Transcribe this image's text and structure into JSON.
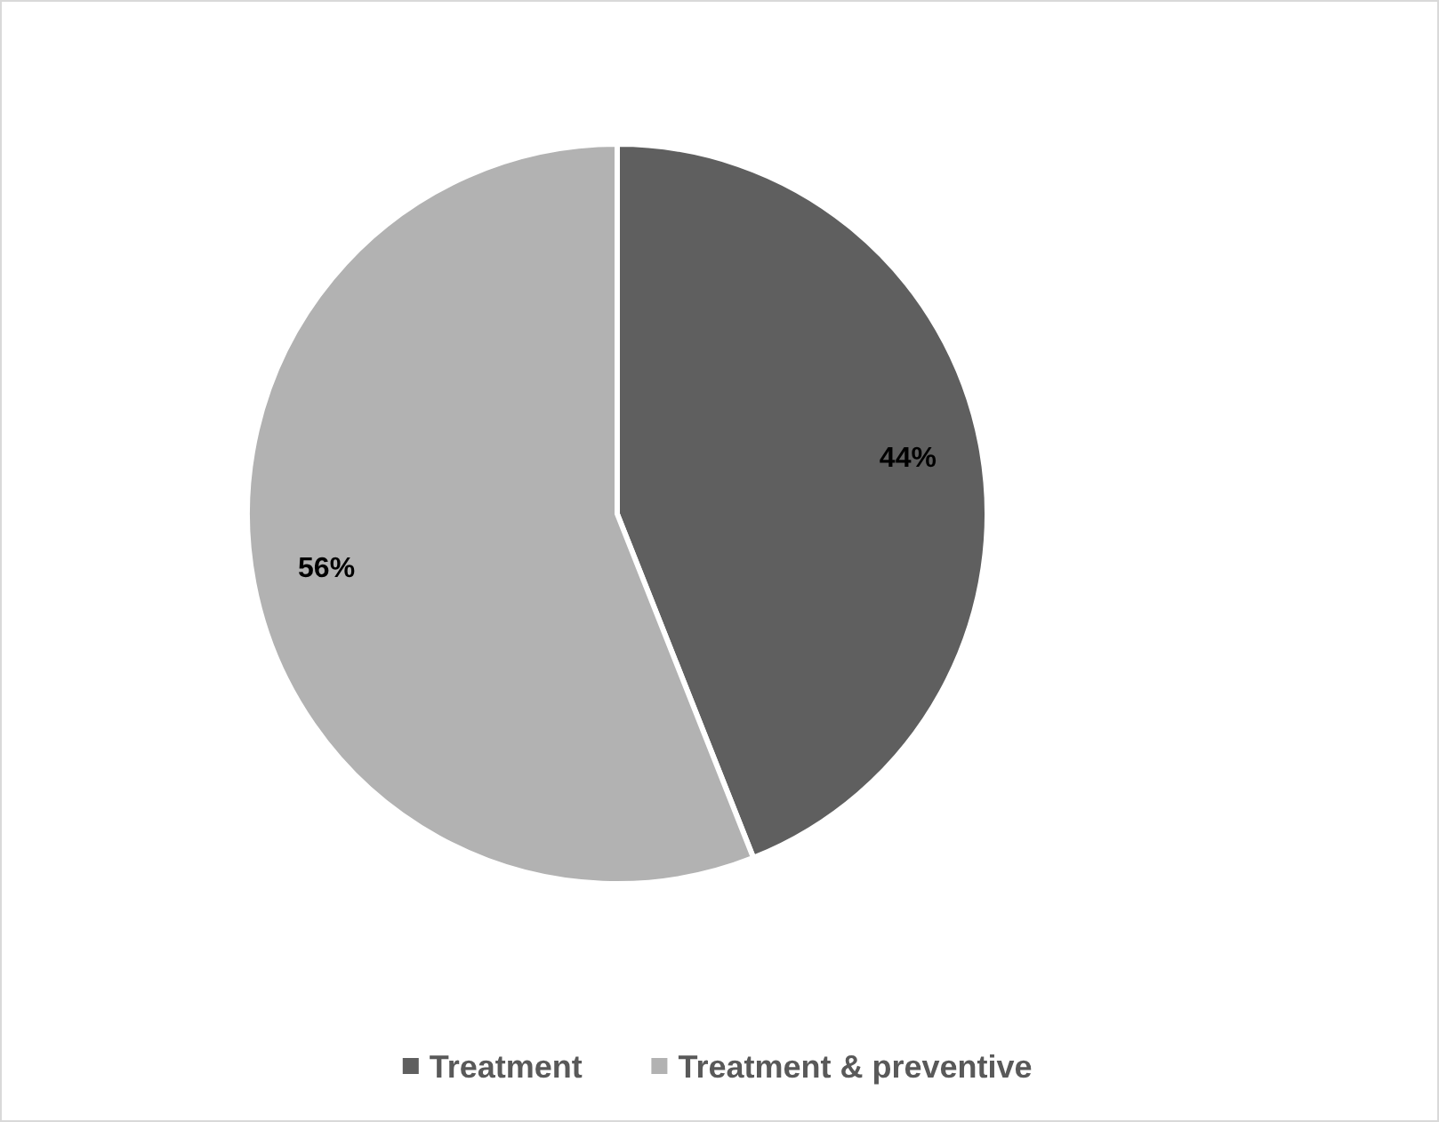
{
  "chart_data": {
    "type": "pie",
    "categories": [
      "Treatment",
      "Treatment & preventive"
    ],
    "values": [
      44,
      56
    ],
    "colors": [
      "#5f5f5f",
      "#b2b2b2"
    ],
    "value_labels": [
      "44%",
      "56%"
    ],
    "legend": "bottom"
  }
}
